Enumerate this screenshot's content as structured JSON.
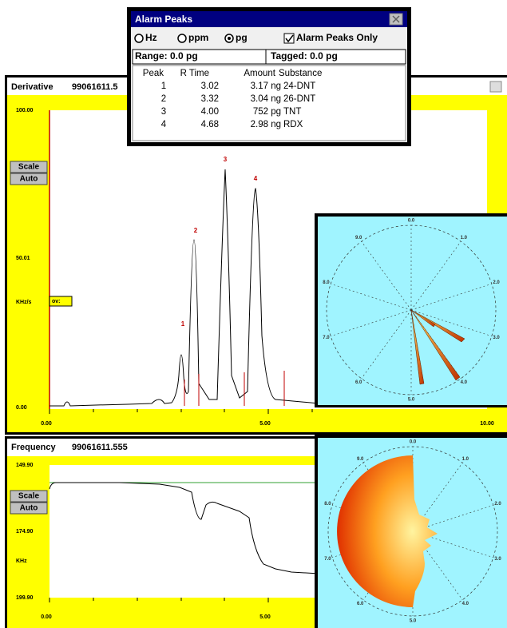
{
  "alarm_peaks": {
    "title": "Alarm Peaks",
    "options": [
      "Hz",
      "ppm",
      "pg"
    ],
    "checkbox": "Alarm Peaks Only",
    "range": "Range: 0.0 pg",
    "tagged": "Tagged: 0.0 pg",
    "columns": [
      "Peak",
      "R Time",
      "Amount",
      "Substance"
    ],
    "rows": [
      [
        "1",
        "3.02",
        "3.17 ng",
        "24-DNT"
      ],
      [
        "2",
        "3.32",
        "3.04 ng",
        "26-DNT"
      ],
      [
        "3",
        "4.00",
        "752 pg",
        "TNT"
      ],
      [
        "4",
        "4.68",
        "2.98 ng",
        "RDX"
      ]
    ]
  },
  "derivative": {
    "title": "Derivative",
    "id": "99061611.5",
    "y_labels": [
      "100.00",
      "50.01",
      "0.00"
    ],
    "y_unit": "KHz/s",
    "x_labels": [
      "0.00",
      "5.00",
      "10.00"
    ],
    "buttons": [
      "Scale",
      "Auto"
    ],
    "marker": "ov:",
    "peak_labels": [
      "1",
      "2",
      "3",
      "4"
    ]
  },
  "frequency": {
    "title": "Frequency",
    "id": "99061611.555",
    "y_labels": [
      "149.90",
      "174.90",
      "199.90"
    ],
    "y_unit": "KHz",
    "x_labels": [
      "0.00",
      "5.00"
    ],
    "buttons": [
      "Scale",
      "Auto"
    ]
  },
  "polar_top": {
    "labels": [
      "0.0",
      "1.0",
      "2.0",
      "3.0",
      "4.0",
      "5.0",
      "6.0",
      "7.0",
      "8.0",
      "9.0"
    ]
  },
  "polar_bottom": {
    "labels": [
      "0.0",
      "1.0",
      "2.0",
      "3.0",
      "4.0",
      "5.0",
      "6.0",
      "7.0",
      "8.0",
      "9.0"
    ]
  }
}
